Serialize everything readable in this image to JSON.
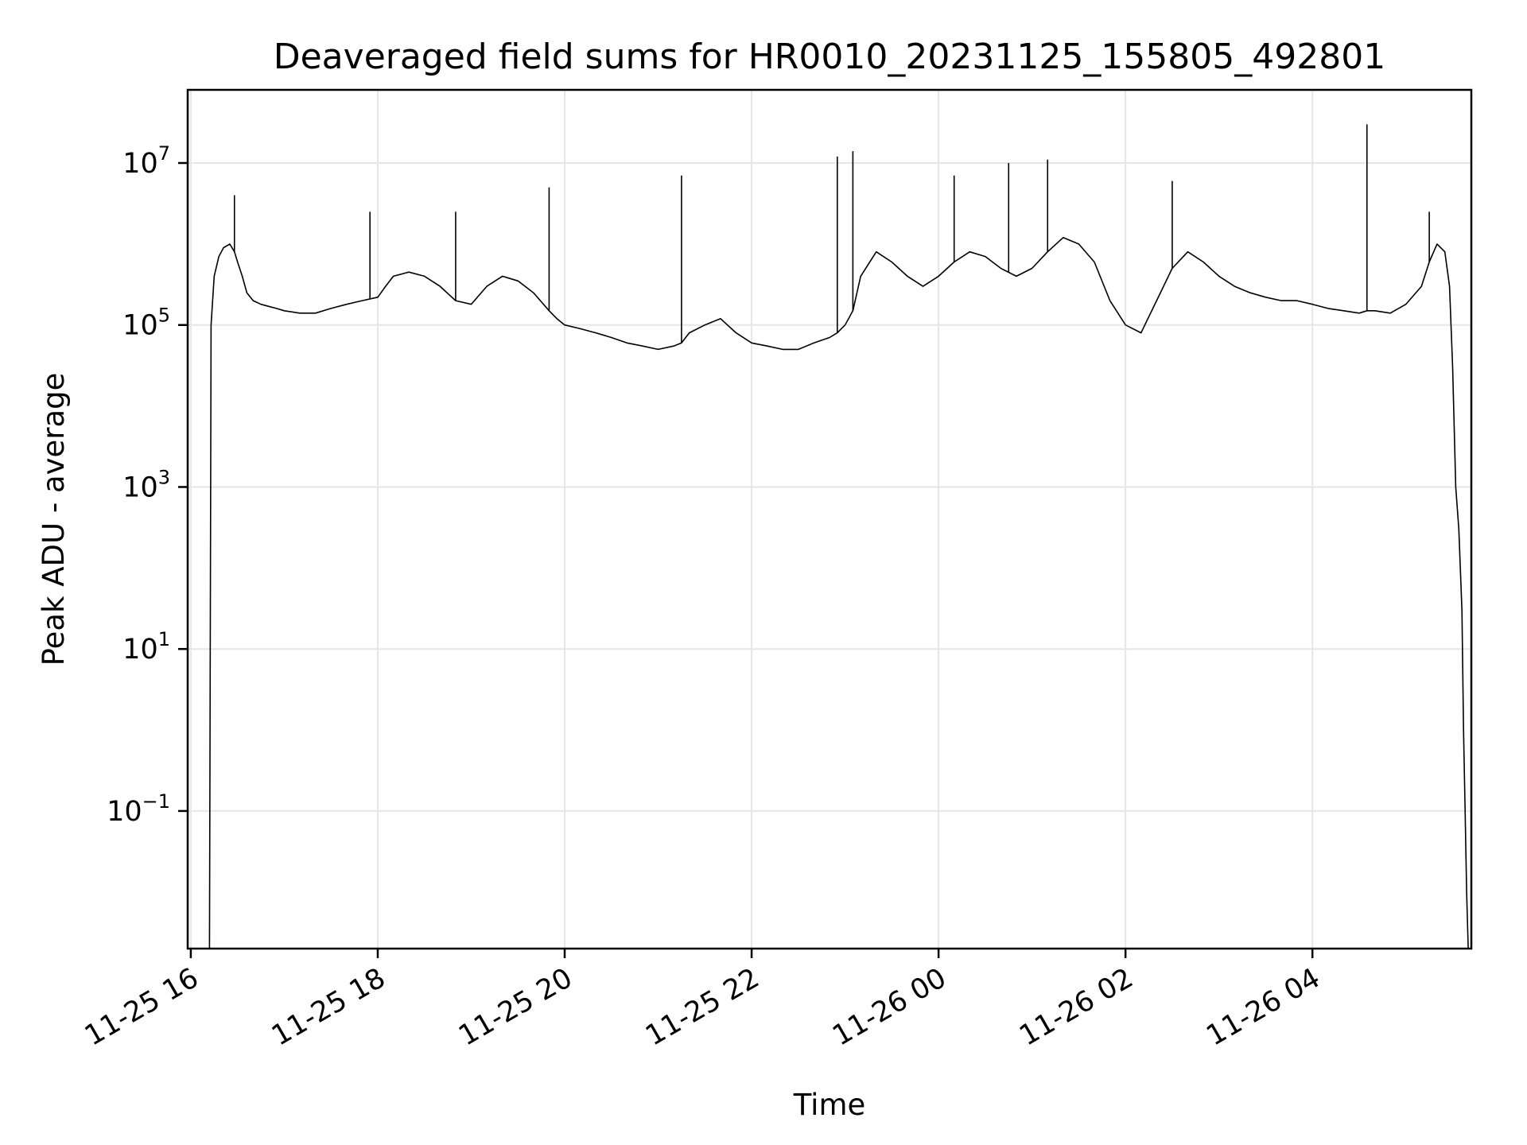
{
  "chart_data": {
    "type": "line",
    "title": "Deaveraged field sums for HR0010_20231125_155805_492801",
    "xlabel": "Time",
    "ylabel": "Peak ADU - average",
    "y_scale": "log",
    "ylim": [
      0.002,
      80000000
    ],
    "xlim": [
      "2023-11-25T15:58",
      "2023-11-26T05:42"
    ],
    "grid": true,
    "line_color": "#000000",
    "x_ticks": [
      {
        "value": "2023-11-25T16:00",
        "label": "11-25 16"
      },
      {
        "value": "2023-11-25T18:00",
        "label": "11-25 18"
      },
      {
        "value": "2023-11-25T20:00",
        "label": "11-25 20"
      },
      {
        "value": "2023-11-25T22:00",
        "label": "11-25 22"
      },
      {
        "value": "2023-11-26T00:00",
        "label": "11-26 00"
      },
      {
        "value": "2023-11-26T02:00",
        "label": "11-26 02"
      },
      {
        "value": "2023-11-26T04:00",
        "label": "11-26 04"
      }
    ],
    "y_ticks": [
      {
        "value": 10000000,
        "base": "10",
        "exp": "7"
      },
      {
        "value": 100000,
        "base": "10",
        "exp": "5"
      },
      {
        "value": 1000,
        "base": "10",
        "exp": "3"
      },
      {
        "value": 10,
        "base": "10",
        "exp": "1"
      },
      {
        "value": 0.1,
        "base": "10",
        "exp": "−1"
      }
    ],
    "series": [
      {
        "x": [
          "2023-11-25T16:12",
          "2023-11-25T16:13",
          "2023-11-25T16:15",
          "2023-11-25T16:18",
          "2023-11-25T16:21",
          "2023-11-25T16:25",
          "2023-11-25T16:28",
          "2023-11-25T16:30",
          "2023-11-25T16:33",
          "2023-11-25T16:36",
          "2023-11-25T16:40",
          "2023-11-25T16:45",
          "2023-11-25T16:50",
          "2023-11-25T16:55",
          "2023-11-25T17:00",
          "2023-11-25T17:10",
          "2023-11-25T17:20",
          "2023-11-25T17:30",
          "2023-11-25T17:40",
          "2023-11-25T17:50",
          "2023-11-25T18:00",
          "2023-11-25T18:05",
          "2023-11-25T18:10",
          "2023-11-25T18:20",
          "2023-11-25T18:30",
          "2023-11-25T18:40",
          "2023-11-25T18:50",
          "2023-11-25T19:00",
          "2023-11-25T19:10",
          "2023-11-25T19:20",
          "2023-11-25T19:30",
          "2023-11-25T19:40",
          "2023-11-25T19:50",
          "2023-11-25T19:55",
          "2023-11-25T20:00",
          "2023-11-25T20:10",
          "2023-11-25T20:20",
          "2023-11-25T20:30",
          "2023-11-25T20:40",
          "2023-11-25T20:50",
          "2023-11-25T21:00",
          "2023-11-25T21:10",
          "2023-11-25T21:15",
          "2023-11-25T21:20",
          "2023-11-25T21:30",
          "2023-11-25T21:40",
          "2023-11-25T21:50",
          "2023-11-25T22:00",
          "2023-11-25T22:10",
          "2023-11-25T22:20",
          "2023-11-25T22:30",
          "2023-11-25T22:40",
          "2023-11-25T22:50",
          "2023-11-25T22:55",
          "2023-11-25T23:00",
          "2023-11-25T23:05",
          "2023-11-25T23:10",
          "2023-11-25T23:20",
          "2023-11-25T23:30",
          "2023-11-25T23:40",
          "2023-11-25T23:50",
          "2023-11-26T00:00",
          "2023-11-26T00:10",
          "2023-11-26T00:20",
          "2023-11-26T00:30",
          "2023-11-26T00:40",
          "2023-11-26T00:50",
          "2023-11-26T01:00",
          "2023-11-26T01:10",
          "2023-11-26T01:20",
          "2023-11-26T01:30",
          "2023-11-26T01:40",
          "2023-11-26T01:50",
          "2023-11-26T02:00",
          "2023-11-26T02:10",
          "2023-11-26T02:20",
          "2023-11-26T02:30",
          "2023-11-26T02:40",
          "2023-11-26T02:50",
          "2023-11-26T03:00",
          "2023-11-26T03:10",
          "2023-11-26T03:20",
          "2023-11-26T03:30",
          "2023-11-26T03:40",
          "2023-11-26T03:50",
          "2023-11-26T04:00",
          "2023-11-26T04:10",
          "2023-11-26T04:20",
          "2023-11-26T04:30",
          "2023-11-26T04:35",
          "2023-11-26T04:40",
          "2023-11-26T04:50",
          "2023-11-26T05:00",
          "2023-11-26T05:10",
          "2023-11-26T05:15",
          "2023-11-26T05:20",
          "2023-11-26T05:25",
          "2023-11-26T05:28",
          "2023-11-26T05:30",
          "2023-11-26T05:32",
          "2023-11-26T05:34",
          "2023-11-26T05:36",
          "2023-11-26T05:37",
          "2023-11-26T05:38",
          "2023-11-26T05:39",
          "2023-11-26T05:40",
          "2023-11-26T05:41"
        ],
        "y": [
          0.002,
          100000,
          400000,
          700000,
          900000,
          1000000,
          800000,
          600000,
          400000,
          250000,
          200000,
          180000,
          170000,
          160000,
          150000,
          140000,
          140000,
          160000,
          180000,
          200000,
          220000,
          300000,
          400000,
          450000,
          400000,
          300000,
          200000,
          180000,
          300000,
          400000,
          350000,
          250000,
          150000,
          120000,
          100000,
          90000,
          80000,
          70000,
          60000,
          55000,
          50000,
          55000,
          60000,
          80000,
          100000,
          120000,
          80000,
          60000,
          55000,
          50000,
          50000,
          60000,
          70000,
          80000,
          100000,
          150000,
          400000,
          800000,
          600000,
          400000,
          300000,
          400000,
          600000,
          800000,
          700000,
          500000,
          400000,
          500000,
          800000,
          1200000,
          1000000,
          600000,
          200000,
          100000,
          80000,
          200000,
          500000,
          800000,
          600000,
          400000,
          300000,
          250000,
          220000,
          200000,
          200000,
          180000,
          160000,
          150000,
          140000,
          150000,
          150000,
          140000,
          180000,
          300000,
          600000,
          1000000,
          800000,
          300000,
          30000,
          1000,
          300,
          30,
          1,
          0.1,
          0.01,
          0.002,
          0.002
        ],
        "spikes": [
          {
            "x": "2023-11-25T16:28",
            "y": 4000000
          },
          {
            "x": "2023-11-25T17:55",
            "y": 2500000
          },
          {
            "x": "2023-11-25T18:50",
            "y": 2500000
          },
          {
            "x": "2023-11-25T19:50",
            "y": 5000000
          },
          {
            "x": "2023-11-25T21:15",
            "y": 7000000
          },
          {
            "x": "2023-11-25T22:55",
            "y": 12000000
          },
          {
            "x": "2023-11-25T23:05",
            "y": 14000000
          },
          {
            "x": "2023-11-26T00:10",
            "y": 7000000
          },
          {
            "x": "2023-11-26T00:45",
            "y": 10000000
          },
          {
            "x": "2023-11-26T01:10",
            "y": 11000000
          },
          {
            "x": "2023-11-26T02:30",
            "y": 6000000
          },
          {
            "x": "2023-11-26T04:35",
            "y": 30000000
          },
          {
            "x": "2023-11-26T05:15",
            "y": 2500000
          }
        ]
      }
    ]
  }
}
